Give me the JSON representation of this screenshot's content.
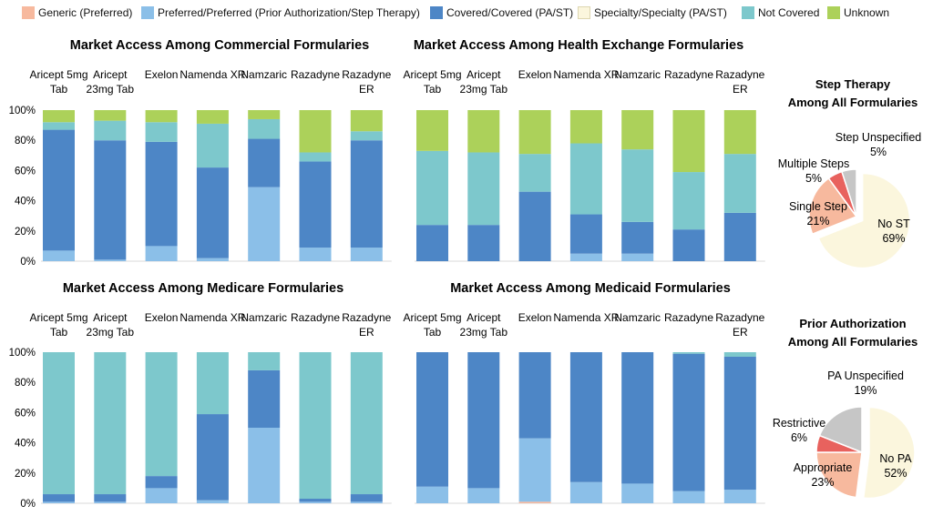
{
  "legend": [
    {
      "label": "Generic (Preferred)",
      "color": "#f7b99e"
    },
    {
      "label": "Preferred/Preferred (Prior Authorization/Step Therapy)",
      "color": "#8bbfe8"
    },
    {
      "label": "Covered/Covered (PA/ST)",
      "color": "#4d86c6"
    },
    {
      "label": "Specialty/Specialty (PA/ST)",
      "color": "#fbf6dd"
    },
    {
      "label": "Not Covered",
      "color": "#7dc8cc"
    },
    {
      "label": "Unknown",
      "color": "#acd15a"
    }
  ],
  "chart_data": [
    {
      "type": "bar",
      "stacked": true,
      "title": "Market Access Among Commercial Formularies",
      "categories": [
        "Aricept 5mg Tab",
        "Aricept 23mg Tab",
        "Exelon",
        "Namenda XR",
        "Namzaric",
        "Razadyne",
        "Razadyne ER"
      ],
      "ylim": [
        0,
        100
      ],
      "yticks": [
        "0%",
        "20%",
        "40%",
        "60%",
        "80%",
        "100%"
      ],
      "series": [
        {
          "name": "Generic (Preferred)",
          "values": [
            0,
            0,
            0,
            0,
            0,
            0,
            0
          ]
        },
        {
          "name": "Preferred/Preferred (Prior Authorization/Step Therapy)",
          "values": [
            7,
            1,
            10,
            2,
            49,
            9,
            9
          ]
        },
        {
          "name": "Covered/Covered (PA/ST)",
          "values": [
            80,
            79,
            69,
            60,
            32,
            57,
            71
          ]
        },
        {
          "name": "Specialty/Specialty (PA/ST)",
          "values": [
            0,
            0,
            0,
            0,
            0,
            0,
            0
          ]
        },
        {
          "name": "Not Covered",
          "values": [
            5,
            13,
            13,
            29,
            13,
            6,
            6
          ]
        },
        {
          "name": "Unknown",
          "values": [
            8,
            7,
            8,
            9,
            6,
            28,
            14
          ]
        }
      ]
    },
    {
      "type": "bar",
      "stacked": true,
      "title": "Market Access Among Health Exchange Formularies",
      "categories": [
        "Aricept 5mg Tab",
        "Aricept 23mg Tab",
        "Exelon",
        "Namenda XR",
        "Namzaric",
        "Razadyne",
        "Razadyne ER"
      ],
      "ylim": [
        0,
        100
      ],
      "yticks": [
        "0%",
        "20%",
        "40%",
        "60%",
        "80%",
        "100%"
      ],
      "series": [
        {
          "name": "Generic (Preferred)",
          "values": [
            0,
            0,
            0,
            0,
            0,
            0,
            0
          ]
        },
        {
          "name": "Preferred/Preferred (Prior Authorization/Step Therapy)",
          "values": [
            0,
            0,
            0,
            5,
            5,
            0,
            0
          ]
        },
        {
          "name": "Covered/Covered (PA/ST)",
          "values": [
            24,
            24,
            46,
            26,
            21,
            21,
            32
          ]
        },
        {
          "name": "Specialty/Specialty (PA/ST)",
          "values": [
            0,
            0,
            0,
            0,
            0,
            0,
            0
          ]
        },
        {
          "name": "Not Covered",
          "values": [
            49,
            48,
            25,
            47,
            48,
            38,
            39
          ]
        },
        {
          "name": "Unknown",
          "values": [
            27,
            28,
            29,
            22,
            26,
            41,
            29
          ]
        }
      ]
    },
    {
      "type": "bar",
      "stacked": true,
      "title": "Market Access Among Medicare Formularies",
      "categories": [
        "Aricept 5mg Tab",
        "Aricept 23mg Tab",
        "Exelon",
        "Namenda XR",
        "Namzaric",
        "Razadyne",
        "Razadyne ER"
      ],
      "ylim": [
        0,
        100
      ],
      "yticks": [
        "0%",
        "20%",
        "40%",
        "60%",
        "80%",
        "100%"
      ],
      "series": [
        {
          "name": "Generic (Preferred)",
          "values": [
            0,
            0,
            0,
            0,
            0,
            0,
            0
          ]
        },
        {
          "name": "Preferred/Preferred (Prior Authorization/Step Therapy)",
          "values": [
            1,
            1,
            10,
            2,
            50,
            1,
            1
          ]
        },
        {
          "name": "Covered/Covered (PA/ST)",
          "values": [
            5,
            5,
            8,
            57,
            38,
            2,
            5
          ]
        },
        {
          "name": "Specialty/Specialty (PA/ST)",
          "values": [
            0,
            0,
            0,
            0,
            0,
            0,
            0
          ]
        },
        {
          "name": "Not Covered",
          "values": [
            94,
            94,
            82,
            41,
            12,
            97,
            94
          ]
        },
        {
          "name": "Unknown",
          "values": [
            0,
            0,
            0,
            0,
            0,
            0,
            0
          ]
        }
      ]
    },
    {
      "type": "bar",
      "stacked": true,
      "title": "Market Access Among Medicaid Formularies",
      "categories": [
        "Aricept 5mg Tab",
        "Aricept 23mg Tab",
        "Exelon",
        "Namenda XR",
        "Namzaric",
        "Razadyne",
        "Razadyne ER"
      ],
      "ylim": [
        0,
        100
      ],
      "yticks": [
        "0%",
        "20%",
        "40%",
        "60%",
        "80%",
        "100%"
      ],
      "series": [
        {
          "name": "Generic (Preferred)",
          "values": [
            0,
            0,
            1,
            0,
            0,
            0,
            0
          ]
        },
        {
          "name": "Preferred/Preferred (Prior Authorization/Step Therapy)",
          "values": [
            11,
            10,
            42,
            14,
            13,
            8,
            9
          ]
        },
        {
          "name": "Covered/Covered (PA/ST)",
          "values": [
            89,
            90,
            57,
            86,
            87,
            91,
            88
          ]
        },
        {
          "name": "Specialty/Specialty (PA/ST)",
          "values": [
            0,
            0,
            0,
            0,
            0,
            0,
            0
          ]
        },
        {
          "name": "Not Covered",
          "values": [
            0,
            0,
            0,
            0,
            0,
            1,
            3
          ]
        },
        {
          "name": "Unknown",
          "values": [
            0,
            0,
            0,
            0,
            0,
            0,
            0
          ]
        }
      ]
    },
    {
      "type": "pie",
      "title": "Step Therapy Among All Formularies",
      "slices": [
        {
          "label": "No ST",
          "value": 69,
          "display": "69%",
          "color": "#fbf6dd"
        },
        {
          "label": "Single Step",
          "value": 21,
          "display": "21%",
          "color": "#f7b99e"
        },
        {
          "label": "Multiple Steps",
          "value": 5,
          "display": "5%",
          "color": "#e8625e"
        },
        {
          "label": "Step Unspecified",
          "value": 5,
          "display": "5%",
          "color": "#c6c6c6"
        }
      ]
    },
    {
      "type": "pie",
      "title": "Prior Authorization Among All Formularies",
      "slices": [
        {
          "label": "No PA",
          "value": 52,
          "display": "52%",
          "color": "#fbf6dd"
        },
        {
          "label": "Appropriate",
          "value": 23,
          "display": "23%",
          "color": "#f7b99e"
        },
        {
          "label": "Restrictive",
          "value": 6,
          "display": "6%",
          "color": "#e8625e"
        },
        {
          "label": "PA Unspecified",
          "value": 19,
          "display": "19%",
          "color": "#c6c6c6"
        }
      ]
    }
  ]
}
